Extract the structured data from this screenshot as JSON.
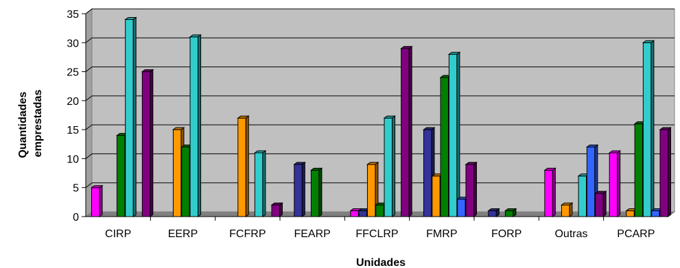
{
  "chart_data": {
    "type": "bar",
    "title": "",
    "xlabel": "Unidades",
    "ylabel_lines": [
      "Quantidades",
      "emprestadas"
    ],
    "ylim": [
      0,
      35
    ],
    "yticks": [
      0,
      5,
      10,
      15,
      20,
      25,
      30,
      35
    ],
    "grid": true,
    "style": "3d-clustered-column",
    "plot_background": "#c0c0c0",
    "categories": [
      "CIRP",
      "EERP",
      "FCFRP",
      "FEARP",
      "FFCLRP",
      "FMRP",
      "FORP",
      "Outras",
      "PCARP"
    ],
    "series": [
      {
        "color": "#ff00ff",
        "values": [
          5,
          0,
          0,
          0,
          1,
          0,
          0,
          8,
          11
        ]
      },
      {
        "color": "#333399",
        "values": [
          0,
          0,
          0,
          9,
          1,
          15,
          1,
          0,
          0
        ]
      },
      {
        "color": "#ff9900",
        "values": [
          0,
          15,
          17,
          0,
          9,
          7,
          0,
          2,
          1
        ]
      },
      {
        "color": "#008000",
        "values": [
          14,
          12,
          0,
          8,
          2,
          24,
          1,
          0,
          16
        ]
      },
      {
        "color": "#33cccc",
        "values": [
          34,
          31,
          11,
          0,
          17,
          28,
          0,
          7,
          30
        ]
      },
      {
        "color": "#3366ff",
        "values": [
          0,
          0,
          0,
          0,
          0,
          3,
          0,
          12,
          1
        ]
      },
      {
        "color": "#800080",
        "values": [
          25,
          0,
          2,
          0,
          29,
          9,
          0,
          4,
          15
        ]
      }
    ]
  }
}
